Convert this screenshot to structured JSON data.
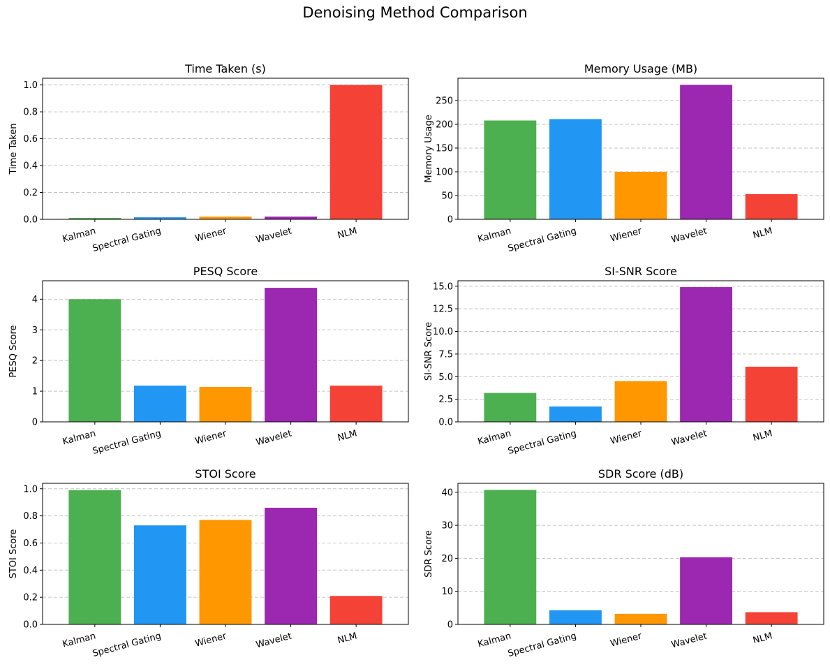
{
  "figure_title": "Denoising Method Comparison",
  "chart_data": [
    {
      "type": "bar",
      "title": "Time Taken (s)",
      "xlabel": "",
      "ylabel": "Time Taken",
      "categories": [
        "Kalman",
        "Spectral Gating",
        "Wiener",
        "Wavelet",
        "NLM"
      ],
      "values": [
        0.01,
        0.015,
        0.02,
        0.02,
        1.0
      ],
      "colors": [
        "#4caf50",
        "#2196f3",
        "#ff9800",
        "#9c27b0",
        "#f44336"
      ],
      "ylim": [
        0,
        1.05
      ],
      "yticks": [
        0.0,
        0.2,
        0.4,
        0.6,
        0.8,
        1.0
      ],
      "ytick_labels": [
        "0.0",
        "0.2",
        "0.4",
        "0.6",
        "0.8",
        "1.0"
      ],
      "grid": "y-dashed"
    },
    {
      "type": "bar",
      "title": "Memory Usage (MB)",
      "xlabel": "",
      "ylabel": "Memory Usage",
      "categories": [
        "Kalman",
        "Spectral Gating",
        "Wiener",
        "Wavelet",
        "NLM"
      ],
      "values": [
        208,
        211,
        100,
        283,
        53
      ],
      "colors": [
        "#4caf50",
        "#2196f3",
        "#ff9800",
        "#9c27b0",
        "#f44336"
      ],
      "ylim": [
        0,
        297
      ],
      "yticks": [
        0,
        50,
        100,
        150,
        200,
        250
      ],
      "ytick_labels": [
        "0",
        "50",
        "100",
        "150",
        "200",
        "250"
      ],
      "grid": "y-dashed"
    },
    {
      "type": "bar",
      "title": "PESQ Score",
      "xlabel": "",
      "ylabel": "PESQ Score",
      "categories": [
        "Kalman",
        "Spectral Gating",
        "Wiener",
        "Wavelet",
        "NLM"
      ],
      "values": [
        4.0,
        1.18,
        1.14,
        4.37,
        1.18
      ],
      "colors": [
        "#4caf50",
        "#2196f3",
        "#ff9800",
        "#9c27b0",
        "#f44336"
      ],
      "ylim": [
        0,
        4.6
      ],
      "yticks": [
        0,
        1,
        2,
        3,
        4
      ],
      "ytick_labels": [
        "0",
        "1",
        "2",
        "3",
        "4"
      ],
      "grid": "y-dashed"
    },
    {
      "type": "bar",
      "title": "SI-SNR Score",
      "xlabel": "",
      "ylabel": "SI-SNR Score",
      "categories": [
        "Kalman",
        "Spectral Gating",
        "Wiener",
        "Wavelet",
        "NLM"
      ],
      "values": [
        3.2,
        1.7,
        4.5,
        14.9,
        6.1
      ],
      "colors": [
        "#4caf50",
        "#2196f3",
        "#ff9800",
        "#9c27b0",
        "#f44336"
      ],
      "ylim": [
        0,
        15.6
      ],
      "yticks": [
        0.0,
        2.5,
        5.0,
        7.5,
        10.0,
        12.5,
        15.0
      ],
      "ytick_labels": [
        "0.0",
        "2.5",
        "5.0",
        "7.5",
        "10.0",
        "12.5",
        "15.0"
      ],
      "grid": "y-dashed"
    },
    {
      "type": "bar",
      "title": "STOI Score",
      "xlabel": "",
      "ylabel": "STOI Score",
      "categories": [
        "Kalman",
        "Spectral Gating",
        "Wiener",
        "Wavelet",
        "NLM"
      ],
      "values": [
        0.99,
        0.73,
        0.77,
        0.86,
        0.21
      ],
      "colors": [
        "#4caf50",
        "#2196f3",
        "#ff9800",
        "#9c27b0",
        "#f44336"
      ],
      "ylim": [
        0,
        1.04
      ],
      "yticks": [
        0.0,
        0.2,
        0.4,
        0.6,
        0.8,
        1.0
      ],
      "ytick_labels": [
        "0.0",
        "0.2",
        "0.4",
        "0.6",
        "0.8",
        "1.0"
      ],
      "grid": "y-dashed"
    },
    {
      "type": "bar",
      "title": "SDR Score (dB)",
      "xlabel": "",
      "ylabel": "SDR Score",
      "categories": [
        "Kalman",
        "Spectral Gating",
        "Wiener",
        "Wavelet",
        "NLM"
      ],
      "values": [
        40.7,
        4.3,
        3.2,
        20.3,
        3.7
      ],
      "colors": [
        "#4caf50",
        "#2196f3",
        "#ff9800",
        "#9c27b0",
        "#f44336"
      ],
      "ylim": [
        0,
        42.7
      ],
      "yticks": [
        0,
        10,
        20,
        30,
        40
      ],
      "ytick_labels": [
        "0",
        "10",
        "20",
        "30",
        "40"
      ],
      "grid": "y-dashed"
    }
  ]
}
